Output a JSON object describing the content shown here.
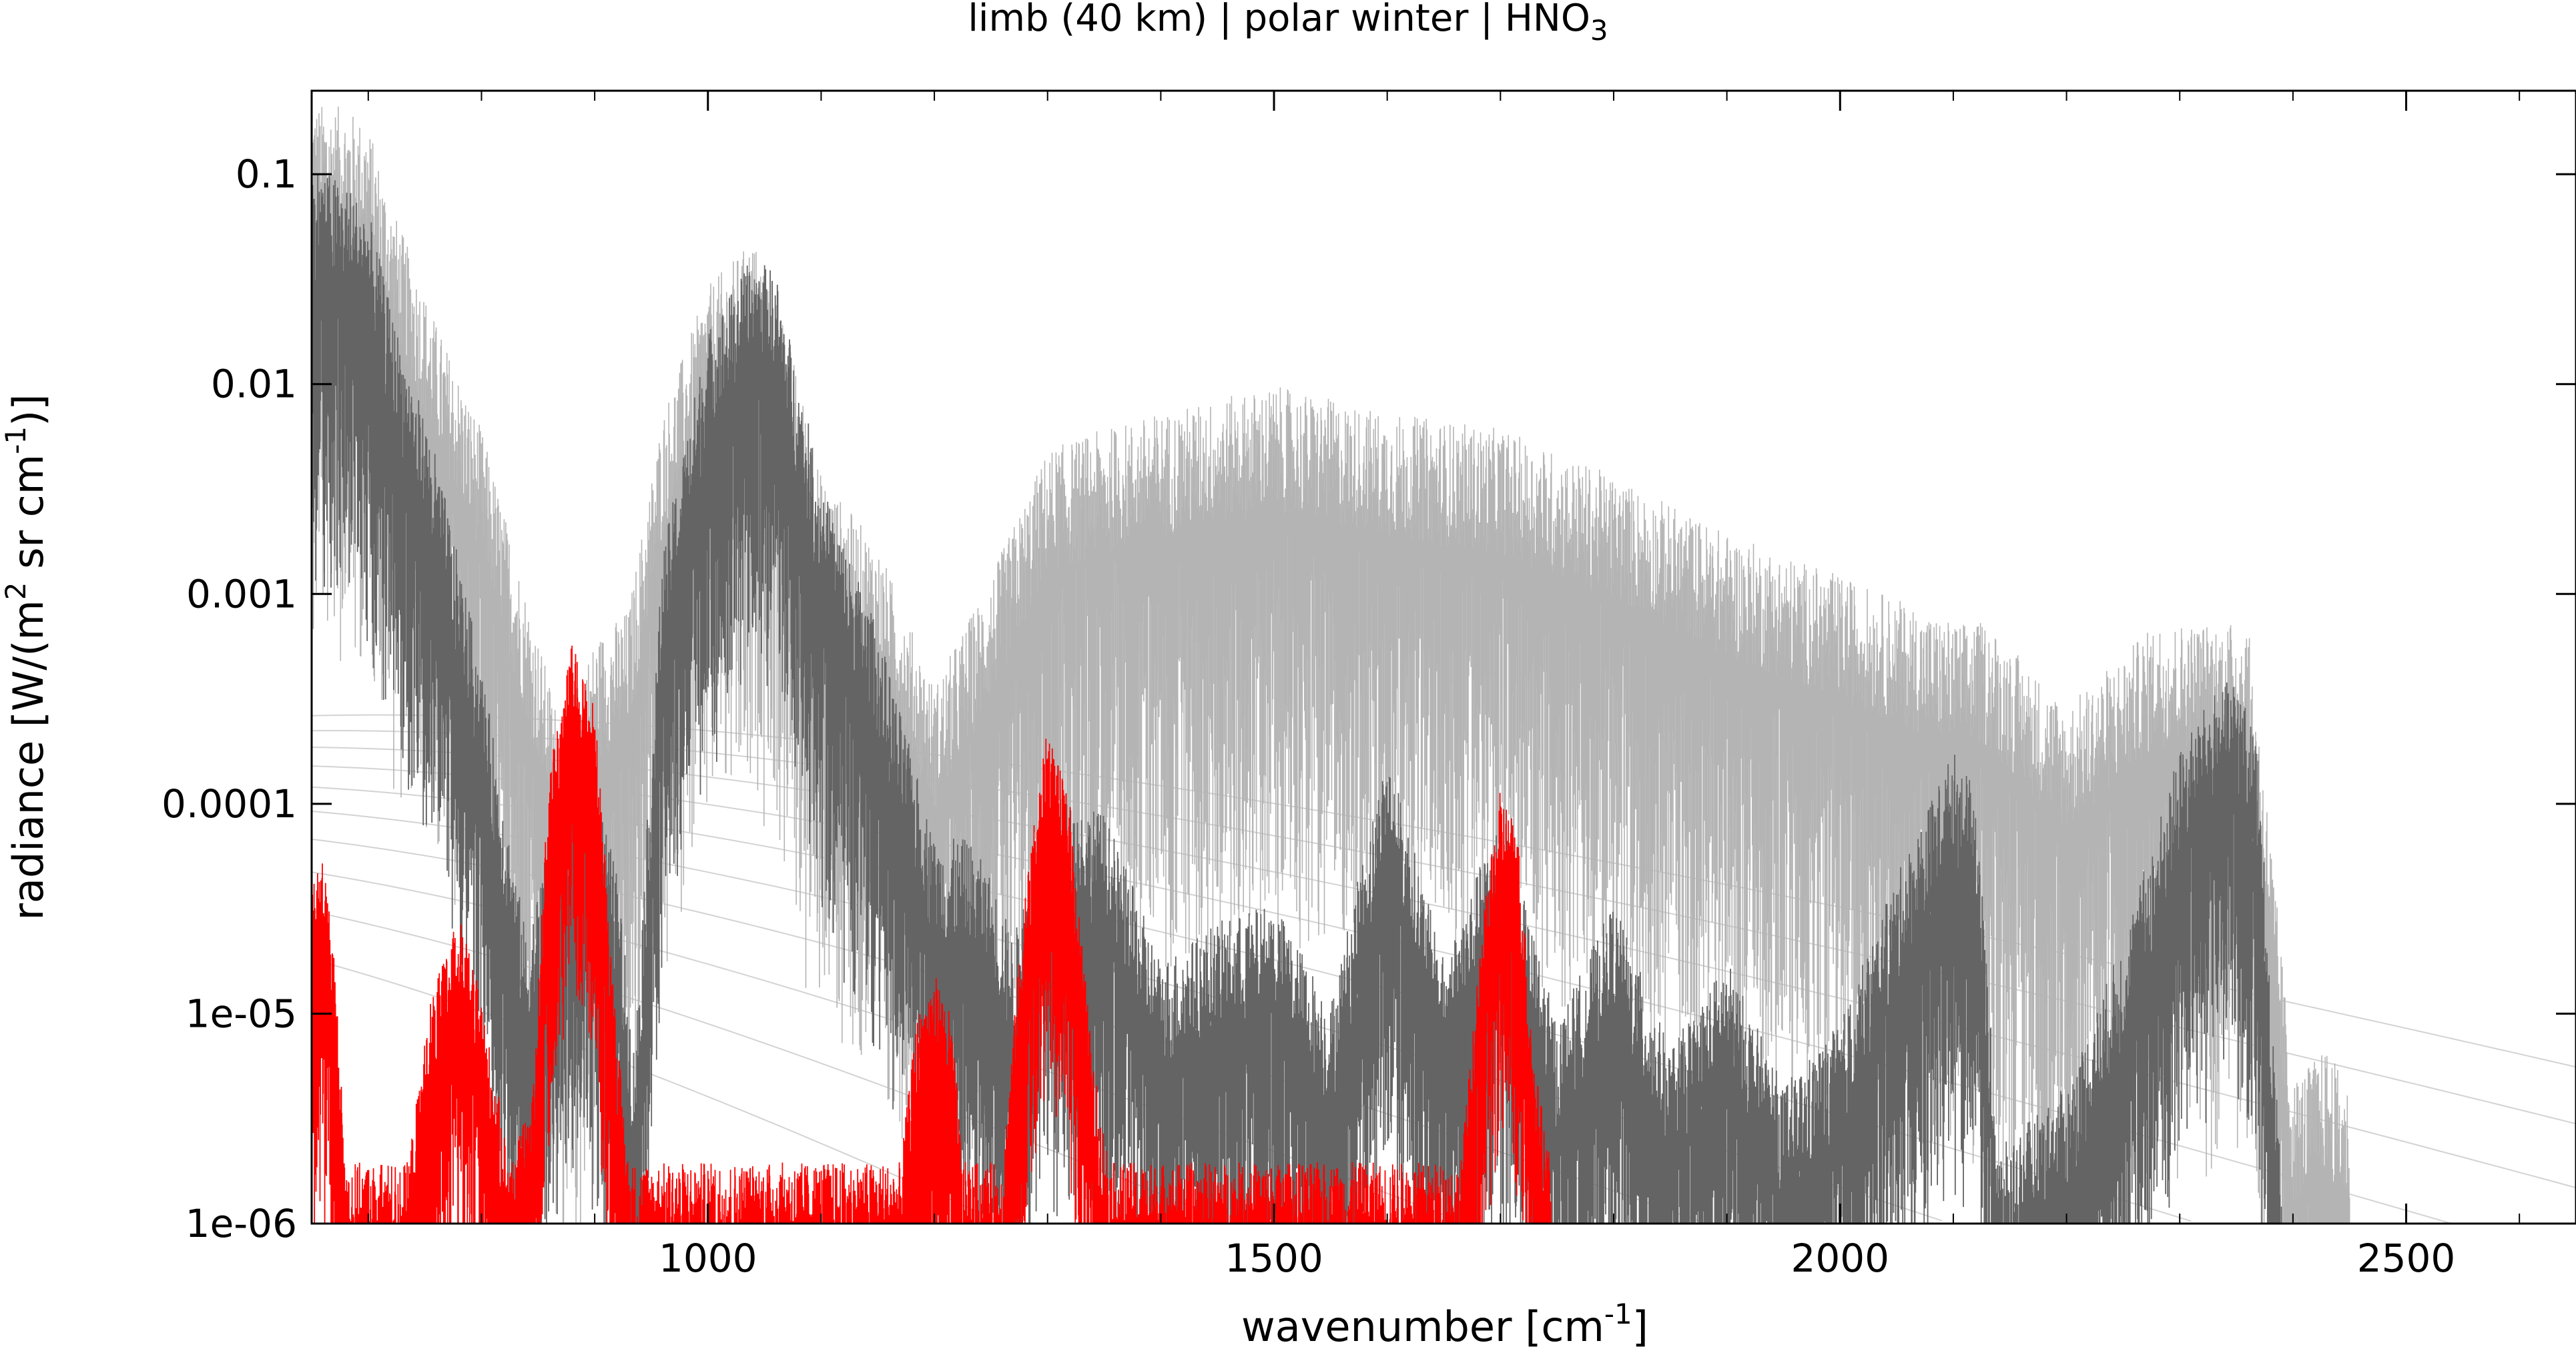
{
  "chart_data": {
    "type": "line",
    "title": {
      "main": "limb (40 km) | polar winter | HNO",
      "subscript": "3"
    },
    "xlabel": {
      "main": "wavenumber [cm",
      "superscript": "-1",
      "end": "]"
    },
    "ylabel": {
      "p1": "radiance [W/(m",
      "sup1": "2",
      "p2": " sr cm",
      "sup2": "-1",
      "p3": ")]"
    },
    "x_axis": {
      "range": [
        650,
        2650
      ],
      "ticks": [
        1000,
        1500,
        2000,
        2500
      ],
      "tick_labels": [
        "1000",
        "1500",
        "2000",
        "2500"
      ]
    },
    "y_axis": {
      "scale": "log",
      "range": [
        1e-06,
        0.25
      ],
      "ticks": [
        1e-06,
        1e-05,
        0.0001,
        0.001,
        0.01,
        0.1
      ],
      "tick_labels": [
        "1e-06",
        "1e-05",
        "0.0001",
        "0.001",
        "0.01",
        "0.1"
      ]
    },
    "grid": false,
    "legend": "none",
    "series": [
      {
        "role": "reference-planck-curves",
        "color": "#c8c8c8",
        "temperatures_K": [
          180,
          200,
          220,
          240,
          260,
          280,
          300,
          320,
          340,
          360
        ]
      },
      {
        "role": "light-gray-envelope",
        "color": "#b4b4b4",
        "x": [
          650,
          680,
          700,
          720,
          760,
          800,
          840,
          870,
          900,
          930,
          960,
          1000,
          1040,
          1060,
          1100,
          1150,
          1200,
          1250,
          1300,
          1350,
          1400,
          1500,
          1600,
          1700,
          1800,
          1900,
          2000,
          2100,
          2130,
          2200,
          2280,
          2330,
          2360,
          2380,
          2400,
          2430,
          2450
        ],
        "y": [
          0.09,
          0.085,
          0.07,
          0.03,
          0.008,
          0.0025,
          0.0004,
          0.0001,
          0.00025,
          0.00035,
          0.003,
          0.012,
          0.02,
          0.012,
          0.0015,
          0.0007,
          0.00015,
          0.0005,
          0.002,
          0.0025,
          0.003,
          0.004,
          0.003,
          0.0025,
          0.0015,
          0.0008,
          0.0005,
          0.0003,
          0.0003,
          0.00012,
          0.0003,
          0.0003,
          0.0003,
          3e-05,
          2e-06,
          2.8e-06,
          1.8e-06
        ]
      },
      {
        "role": "dark-gray-spectrum",
        "color": "#646464",
        "x": [
          650,
          680,
          700,
          720,
          760,
          800,
          840,
          860,
          880,
          900,
          920,
          935,
          960,
          1000,
          1040,
          1060,
          1100,
          1150,
          1200,
          1230,
          1250,
          1270,
          1300,
          1350,
          1400,
          1450,
          1500,
          1550,
          1600,
          1650,
          1700,
          1750,
          1800,
          1850,
          1900,
          1950,
          2000,
          2050,
          2100,
          2120,
          2140,
          2200,
          2250,
          2300,
          2330,
          2350,
          2370,
          2380,
          2390
        ],
        "y": [
          0.05,
          0.04,
          0.03,
          0.01,
          0.002,
          0.0002,
          1e-05,
          3e-05,
          8e-05,
          6e-05,
          2e-05,
          3e-06,
          0.0007,
          0.008,
          0.018,
          0.015,
          0.0015,
          0.0003,
          3e-05,
          3e-05,
          2e-05,
          1e-05,
          5e-05,
          4e-05,
          8e-06,
          1.2e-05,
          1.5e-05,
          5e-06,
          8e-05,
          8e-06,
          4e-05,
          4e-06,
          1.5e-05,
          3e-06,
          8e-06,
          2e-06,
          4e-06,
          2e-05,
          8e-05,
          5e-05,
          1e-06,
          2e-06,
          1e-05,
          8e-05,
          0.00015,
          0.00018,
          8e-05,
          5e-06,
          1e-06
        ]
      },
      {
        "role": "red-HNO3-contribution",
        "color": "#ff0000",
        "x": [
          650,
          660,
          670,
          680,
          735,
          755,
          780,
          800,
          825,
          845,
          860,
          880,
          900,
          920,
          930,
          1170,
          1185,
          1200,
          1215,
          1225,
          1260,
          1280,
          1300,
          1320,
          1340,
          1355,
          1665,
          1685,
          1700,
          1715,
          1730,
          1745
        ],
        "y": [
          2e-05,
          3e-05,
          1e-05,
          1e-06,
          1e-06,
          6e-06,
          1.5e-05,
          6e-06,
          1e-06,
          2e-06,
          8e-05,
          0.0003,
          0.00015,
          4e-06,
          1e-06,
          1e-06,
          5e-06,
          8e-06,
          5e-06,
          1e-06,
          1e-06,
          2e-05,
          0.00012,
          5e-05,
          3e-06,
          1e-06,
          1e-06,
          1.5e-05,
          6e-05,
          4e-05,
          3e-06,
          1e-06
        ]
      }
    ]
  }
}
